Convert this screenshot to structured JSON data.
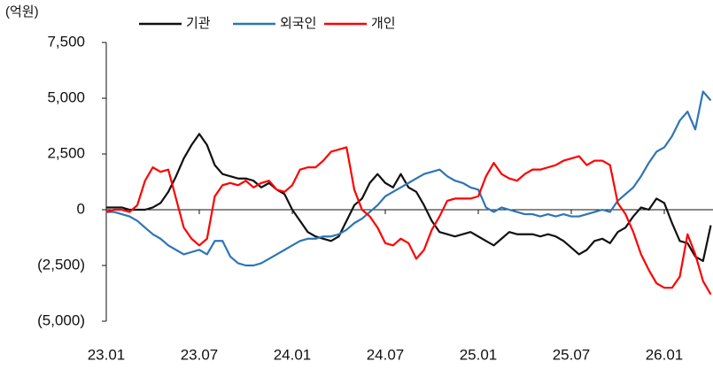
{
  "chart_data": {
    "type": "line",
    "y_unit": "(억원)",
    "categories": [
      "23.01",
      null,
      null,
      null,
      null,
      null,
      null,
      null,
      null,
      null,
      null,
      null,
      "23.07",
      null,
      null,
      null,
      null,
      null,
      null,
      null,
      null,
      null,
      null,
      null,
      "24.01",
      null,
      null,
      null,
      null,
      null,
      null,
      null,
      null,
      null,
      null,
      null,
      "24.07",
      null,
      null,
      null,
      null,
      null,
      null,
      null,
      null,
      null,
      null,
      null,
      "25.01",
      null,
      null,
      null,
      null,
      null,
      null,
      null,
      null,
      null,
      null,
      null,
      "25.07",
      null,
      null,
      null,
      null,
      null,
      null,
      null,
      null,
      null,
      null,
      null,
      "26.01",
      null,
      null,
      null,
      null,
      null,
      null
    ],
    "series": [
      {
        "name": "기관",
        "color": "#111111",
        "values": [
          100,
          100,
          100,
          0,
          0,
          0,
          100,
          300,
          800,
          1500,
          2300,
          2900,
          3400,
          2900,
          2000,
          1600,
          1500,
          1400,
          1400,
          1300,
          1000,
          1200,
          900,
          700,
          0,
          -500,
          -1000,
          -1200,
          -1300,
          -1400,
          -1200,
          -500,
          200,
          500,
          1200,
          1600,
          1200,
          1000,
          1600,
          1000,
          800,
          200,
          -500,
          -1000,
          -1100,
          -1200,
          -1100,
          -1000,
          -1200,
          -1400,
          -1600,
          -1300,
          -1000,
          -1100,
          -1100,
          -1100,
          -1200,
          -1100,
          -1200,
          -1400,
          -1700,
          -2000,
          -1800,
          -1400,
          -1300,
          -1500,
          -1000,
          -800,
          -300,
          100,
          0,
          500,
          300,
          -600,
          -1400,
          -1500,
          -2100,
          -2300,
          -700
        ]
      },
      {
        "name": "외국인",
        "color": "#2e75b6",
        "values": [
          -100,
          -100,
          -200,
          -300,
          -500,
          -800,
          -1100,
          -1300,
          -1600,
          -1800,
          -2000,
          -1900,
          -1800,
          -2000,
          -1400,
          -1400,
          -2100,
          -2400,
          -2500,
          -2500,
          -2400,
          -2200,
          -2000,
          -1800,
          -1600,
          -1400,
          -1300,
          -1300,
          -1200,
          -1200,
          -1100,
          -900,
          -600,
          -400,
          -100,
          200,
          600,
          800,
          1000,
          1200,
          1400,
          1600,
          1700,
          1800,
          1500,
          1300,
          1200,
          1000,
          900,
          100,
          -100,
          100,
          0,
          -100,
          -200,
          -200,
          -300,
          -200,
          -300,
          -200,
          -300,
          -300,
          -200,
          -100,
          0,
          -100,
          400,
          700,
          1000,
          1500,
          2100,
          2600,
          2800,
          3300,
          4000,
          4400,
          3600,
          5300,
          4900
        ]
      },
      {
        "name": "개인",
        "color": "#ff0000",
        "values": [
          -100,
          0,
          0,
          -100,
          200,
          1300,
          1900,
          1700,
          1800,
          500,
          -800,
          -1300,
          -1600,
          -1300,
          600,
          1100,
          1200,
          1100,
          1300,
          1000,
          1200,
          1300,
          900,
          800,
          1100,
          1800,
          1900,
          1900,
          2200,
          2600,
          2700,
          2800,
          900,
          0,
          -300,
          -800,
          -1500,
          -1600,
          -1300,
          -1500,
          -2200,
          -1800,
          -900,
          -300,
          400,
          500,
          500,
          500,
          600,
          1500,
          2100,
          1600,
          1400,
          1300,
          1600,
          1800,
          1800,
          1900,
          2000,
          2200,
          2300,
          2400,
          2000,
          2200,
          2200,
          2000,
          300,
          -200,
          -1000,
          -2000,
          -2700,
          -3300,
          -3500,
          -3500,
          -3000,
          -1100,
          -2000,
          -3200,
          -3800
        ]
      }
    ],
    "ylim": [
      -5000,
      7500
    ],
    "yticks": [
      {
        "value": -5000,
        "label": "(5,000)"
      },
      {
        "value": -2500,
        "label": "(2,500)"
      },
      0,
      {
        "value": 2500,
        "label": "2,500"
      },
      {
        "value": 5000,
        "label": "5,000"
      },
      {
        "value": 7500,
        "label": "7,500"
      }
    ]
  }
}
